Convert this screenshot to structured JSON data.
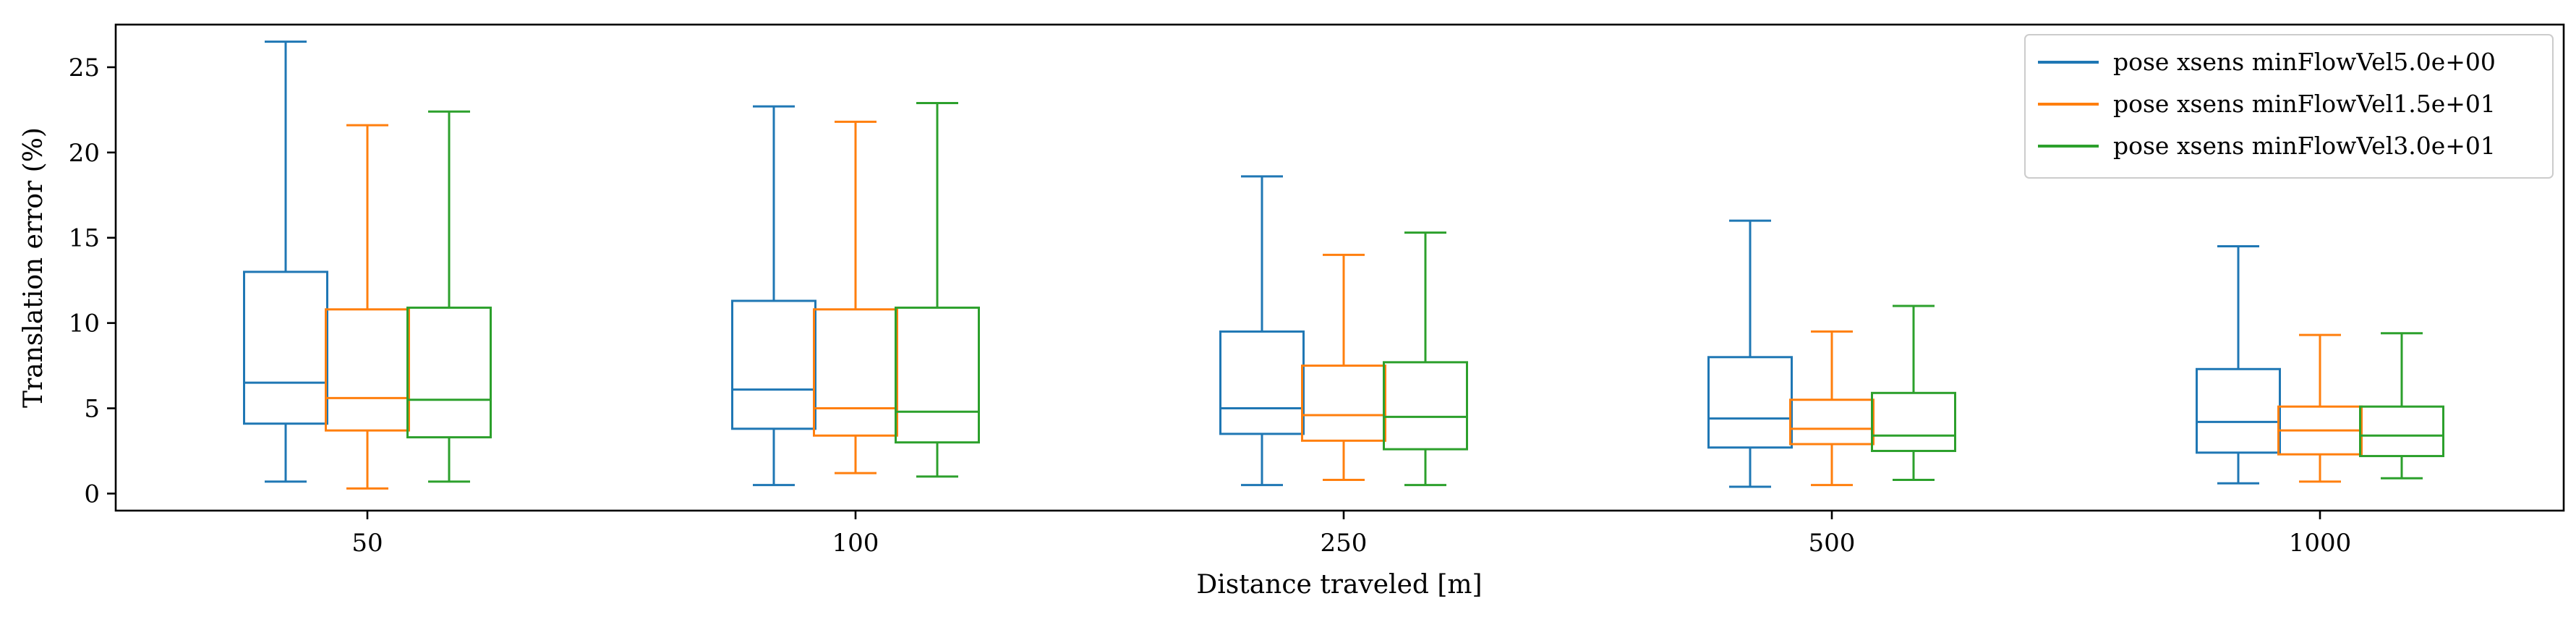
{
  "chart_data": {
    "type": "box",
    "xlabel": "Distance traveled [m]",
    "ylabel": "Translation error (%)",
    "ylim": [
      -1.0,
      27.5
    ],
    "yticks": [
      0,
      5,
      10,
      15,
      20,
      25
    ],
    "categories": [
      "50",
      "100",
      "250",
      "500",
      "1000"
    ],
    "legend_position": "top-right",
    "series": [
      {
        "name": "pose xsens minFlowVel5.0e+00",
        "color": "#1f77b4",
        "boxes": [
          {
            "whislo": 0.7,
            "q1": 4.1,
            "med": 6.5,
            "q3": 13.0,
            "whishi": 26.5
          },
          {
            "whislo": 0.5,
            "q1": 3.8,
            "med": 6.1,
            "q3": 11.3,
            "whishi": 22.7
          },
          {
            "whislo": 0.5,
            "q1": 3.5,
            "med": 5.0,
            "q3": 9.5,
            "whishi": 18.6
          },
          {
            "whislo": 0.4,
            "q1": 2.7,
            "med": 4.4,
            "q3": 8.0,
            "whishi": 16.0
          },
          {
            "whislo": 0.6,
            "q1": 2.4,
            "med": 4.2,
            "q3": 7.3,
            "whishi": 14.5
          }
        ]
      },
      {
        "name": "pose xsens minFlowVel1.5e+01",
        "color": "#ff7f0e",
        "boxes": [
          {
            "whislo": 0.3,
            "q1": 3.7,
            "med": 5.6,
            "q3": 10.8,
            "whishi": 21.6
          },
          {
            "whislo": 1.2,
            "q1": 3.4,
            "med": 5.0,
            "q3": 10.8,
            "whishi": 21.8
          },
          {
            "whislo": 0.8,
            "q1": 3.1,
            "med": 4.6,
            "q3": 7.5,
            "whishi": 14.0
          },
          {
            "whislo": 0.5,
            "q1": 2.9,
            "med": 3.8,
            "q3": 5.5,
            "whishi": 9.5
          },
          {
            "whislo": 0.7,
            "q1": 2.3,
            "med": 3.7,
            "q3": 5.1,
            "whishi": 9.3
          }
        ]
      },
      {
        "name": "pose xsens minFlowVel3.0e+01",
        "color": "#2ca02c",
        "boxes": [
          {
            "whislo": 0.7,
            "q1": 3.3,
            "med": 5.5,
            "q3": 10.9,
            "whishi": 22.4
          },
          {
            "whislo": 1.0,
            "q1": 3.0,
            "med": 4.8,
            "q3": 10.9,
            "whishi": 22.9
          },
          {
            "whislo": 0.5,
            "q1": 2.6,
            "med": 4.5,
            "q3": 7.7,
            "whishi": 15.3
          },
          {
            "whislo": 0.8,
            "q1": 2.5,
            "med": 3.4,
            "q3": 5.9,
            "whishi": 11.0
          },
          {
            "whislo": 0.9,
            "q1": 2.2,
            "med": 3.4,
            "q3": 5.1,
            "whishi": 9.4
          }
        ]
      }
    ]
  }
}
